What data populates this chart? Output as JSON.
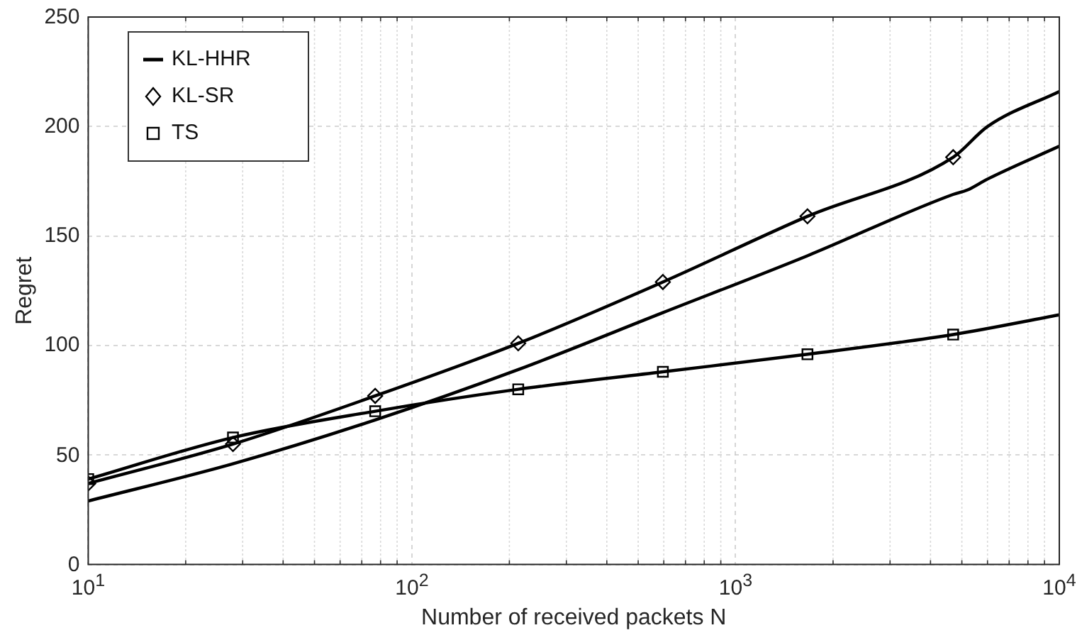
{
  "chart_data": {
    "type": "line",
    "xlabel": "Number of received packets N",
    "ylabel": "Regret",
    "log": "x",
    "grid": true,
    "legend": "top left",
    "xlim": [
      10,
      10000
    ],
    "xticks": [
      {
        "value": 10,
        "label": "10$^{1}$"
      },
      {
        "value": 100,
        "label": "10$^{2}$"
      },
      {
        "value": 1000,
        "label": "10$^{3}$"
      },
      {
        "value": 10000,
        "label": "10$^{4}$"
      }
    ],
    "ylim": [
      0,
      250
    ],
    "yticks": [
      0,
      50,
      100,
      150,
      200,
      250
    ],
    "series": [
      {
        "name": "KL-HHR",
        "marker": "none",
        "color": "#000000",
        "x": [
          10,
          28,
          77,
          213,
          596,
          1667,
          4700,
          5200,
          6000,
          10000
        ],
        "values": [
          29,
          46,
          66,
          89,
          115,
          141,
          169,
          171,
          176,
          191
        ]
      },
      {
        "marker": "none",
        "color": "#000000",
        "x": [
          10,
          28,
          77,
          213,
          596,
          1667,
          4700,
          6000,
          10000
        ],
        "values": [
          37,
          55,
          77,
          101,
          129,
          159,
          186,
          200,
          216
        ]
      },
      {
        "marker": "none",
        "color": "#000000",
        "x": [
          10,
          28,
          77,
          213,
          596,
          1667,
          4700,
          10000
        ],
        "values": [
          39,
          58,
          70,
          80,
          88,
          96,
          105,
          114
        ]
      },
      {
        "name": "KL-SR",
        "type": "scatter",
        "marker": "diamond",
        "color": "#000000",
        "x": [
          10,
          28,
          77,
          213,
          596,
          1667,
          4700
        ],
        "values": [
          37,
          55,
          77,
          101,
          129,
          159,
          186
        ]
      },
      {
        "name": "TS",
        "type": "scatter",
        "marker": "square",
        "color": "#000000",
        "x": [
          10,
          28,
          77,
          213,
          596,
          1667,
          4700
        ],
        "values": [
          39,
          58,
          70,
          80,
          88,
          96,
          105
        ]
      }
    ]
  }
}
